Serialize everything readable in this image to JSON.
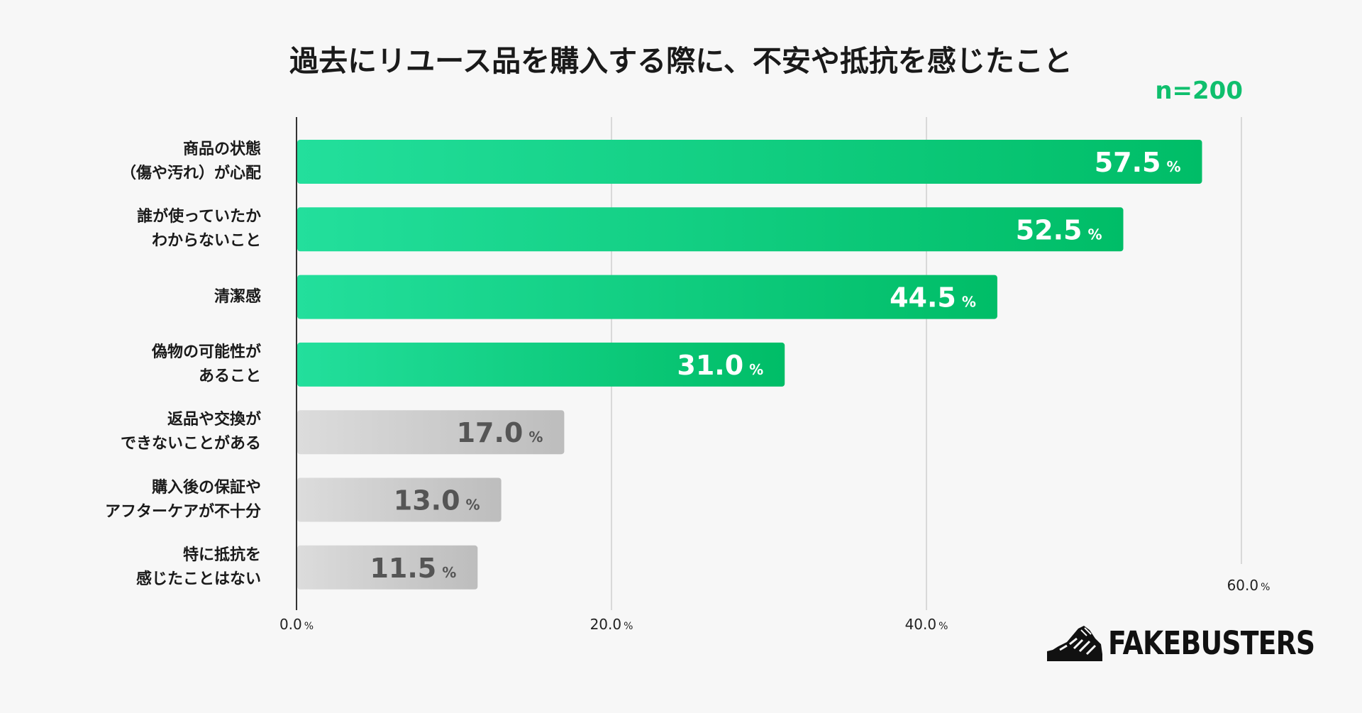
{
  "title": "過去にリユース品を購入する際に、不安や抵抗を感じたこと",
  "sample": "n=200",
  "logo_text": "FAKEBUSTERS",
  "colors": {
    "green_dark": "#00bd67",
    "green_light": "#23df9c",
    "gray_dark": "#bdbdbd",
    "gray_light": "#dcdcdc",
    "green_text": "#0fbf6d",
    "gray_text": "#555555",
    "grid": "#cfcfcf",
    "axis": "#333333"
  },
  "chart_data": {
    "type": "bar",
    "orientation": "horizontal",
    "title": "過去にリユース品を購入する際に、不安や抵抗を感じたこと",
    "categories": [
      "商品の状態\n（傷や汚れ）が心配",
      "誰が使っていたか\nわからないこと",
      "清潔感",
      "偽物の可能性が\nあること",
      "返品や交換が\nできないことがある",
      "購入後の保証や\nアフターケアが不十分",
      "特に抵抗を\n感じたことはない"
    ],
    "values": [
      57.5,
      52.5,
      44.5,
      31.0,
      17.0,
      13.0,
      11.5
    ],
    "value_labels": [
      "57.5",
      "52.5",
      "44.5",
      "31.0",
      "17.0",
      "13.0",
      "11.5"
    ],
    "highlight": [
      true,
      true,
      true,
      true,
      false,
      false,
      false
    ],
    "unit": "%",
    "xlim": [
      0,
      60
    ],
    "ticks": [
      "0.0",
      "20.0",
      "40.0",
      "60.0"
    ],
    "grid": true
  }
}
